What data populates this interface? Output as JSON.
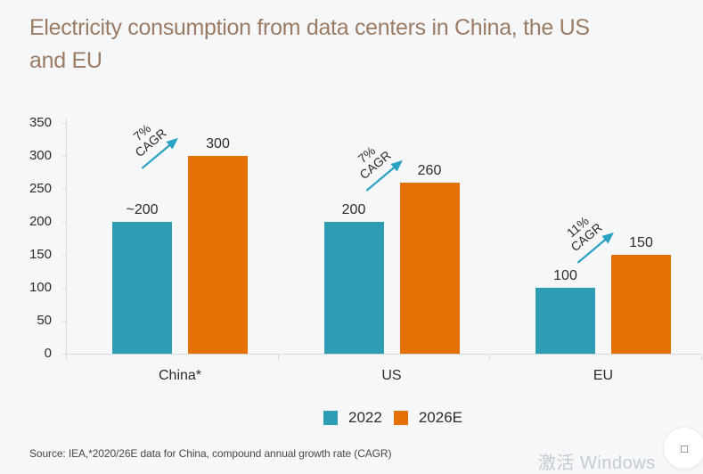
{
  "title": {
    "line1": "Electricity consumption from data centers in China, the US",
    "line2": "and EU"
  },
  "chart_data": {
    "type": "bar",
    "title": "Electricity consumption from data centers in China, the US and EU",
    "categories": [
      "China*",
      "US",
      "EU"
    ],
    "series": [
      {
        "name": "2022",
        "color": "#2e9cb3",
        "values": [
          200,
          200,
          100
        ],
        "labels": [
          "~200",
          "200",
          "100"
        ]
      },
      {
        "name": "2026E",
        "color": "#e57106",
        "values": [
          300,
          260,
          150
        ],
        "labels": [
          "300",
          "260",
          "150"
        ]
      }
    ],
    "annotations": [
      {
        "category": "China*",
        "pct": "7%",
        "word": "CAGR"
      },
      {
        "category": "US",
        "pct": "7%",
        "word": "CAGR"
      },
      {
        "category": "EU",
        "pct": "11%",
        "word": "CAGR"
      }
    ],
    "xlabel": "",
    "ylabel": "",
    "ylim": [
      0,
      350
    ],
    "yticks": [
      0,
      50,
      100,
      150,
      200,
      250,
      300,
      350
    ],
    "grid": false,
    "legend_position": "bottom"
  },
  "source": "Source: IEA,*2020/26E data for China, compound annual growth rate (CAGR)",
  "watermark": "激活 Windows",
  "fab": {
    "glyph": "□"
  },
  "colors": {
    "teal": "#2e9cb3",
    "orange": "#e57106",
    "arrow": "#29a1c2",
    "title": "#9b7b63",
    "axis_text": "#2b2b2b",
    "axis_line": "#d8dbde",
    "background": "#f6f7f8",
    "watermark": "#c4cad1"
  }
}
